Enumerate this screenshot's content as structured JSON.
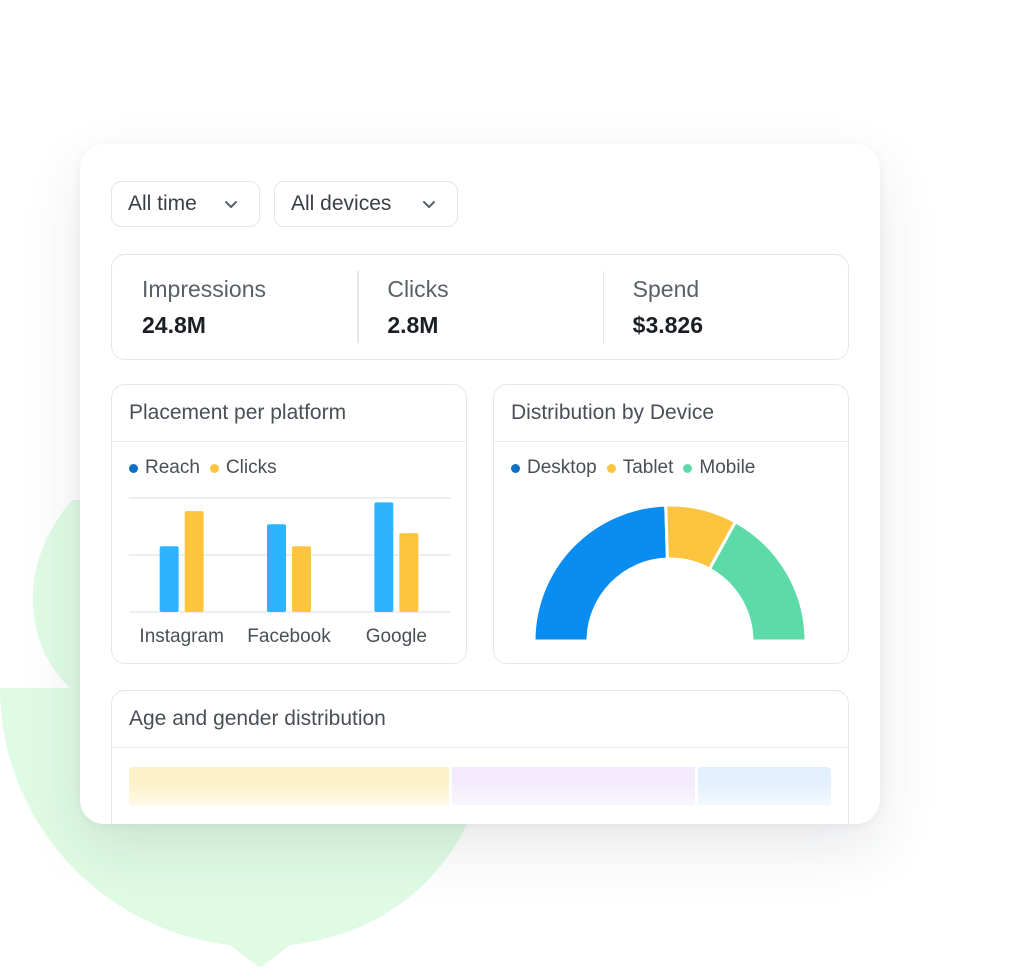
{
  "filters": {
    "time": "All time",
    "devices": "All devices"
  },
  "kpis": [
    {
      "label": "Impressions",
      "value": "24.8M"
    },
    {
      "label": "Clicks",
      "value": "2.8M"
    },
    {
      "label": "Spend",
      "value": "$3.826"
    }
  ],
  "placement": {
    "title": "Placement per platform"
  },
  "device": {
    "title": "Distribution by Device"
  },
  "age": {
    "title": "Age and gender distribution",
    "segments": [
      {
        "share": 0.46,
        "color": "#fdf1c8"
      },
      {
        "share": 0.35,
        "color": "#f3eafb"
      },
      {
        "share": 0.19,
        "color": "#e3f0fd"
      }
    ]
  },
  "chart_data": [
    {
      "type": "bar",
      "categories": [
        "Instagram",
        "Facebook",
        "Google"
      ],
      "series": [
        {
          "name": "Reach",
          "values": [
            30,
            40,
            50
          ],
          "color": "#2eb4ff"
        },
        {
          "name": "Clicks",
          "values": [
            46,
            30,
            36
          ],
          "color": "#fdc43f"
        }
      ],
      "ylim": [
        0,
        52
      ],
      "grid": true,
      "legend": "top-left",
      "legend_dot_colors": [
        "#0d6fc6",
        "#fdc43f"
      ]
    },
    {
      "type": "pie",
      "style": "semi-donut",
      "categories": [
        "Desktop",
        "Tablet",
        "Mobile"
      ],
      "values": [
        49,
        17,
        34
      ],
      "colors": [
        "#0a8df0",
        "#fdc43f",
        "#5cdba8"
      ],
      "legend": "top-left",
      "legend_dot_colors": [
        "#0d6fc6",
        "#fdc43f",
        "#5cdba8"
      ]
    }
  ]
}
